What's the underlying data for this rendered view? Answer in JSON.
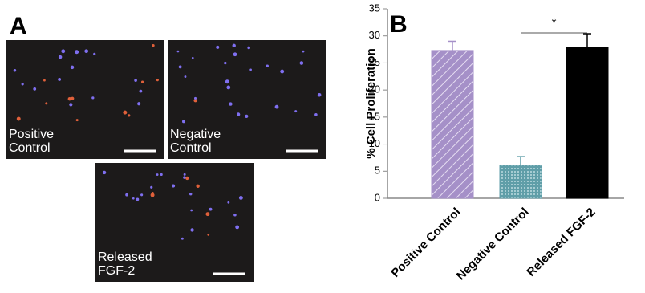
{
  "panels": {
    "a": "A",
    "b": "B"
  },
  "micrographs": [
    {
      "label_lines": [
        "Positive",
        "Control"
      ]
    },
    {
      "label_lines": [
        "Negative",
        "Control"
      ]
    },
    {
      "label_lines": [
        "Released",
        "FGF-2"
      ]
    }
  ],
  "chart_data": {
    "type": "bar",
    "ylabel": "% Cell Proliferation",
    "categories": [
      "Positive Control",
      "Negative Control",
      "Released FGF-2"
    ],
    "values": [
      27.3,
      6.1,
      27.9
    ],
    "errors": [
      1.7,
      1.6,
      2.5
    ],
    "colors": [
      "#a590c8",
      "#5f9ea8",
      "#000000"
    ],
    "ylim": [
      0,
      35
    ],
    "yticks": [
      0,
      5,
      10,
      15,
      20,
      25,
      30,
      35
    ],
    "annotation": "*"
  }
}
